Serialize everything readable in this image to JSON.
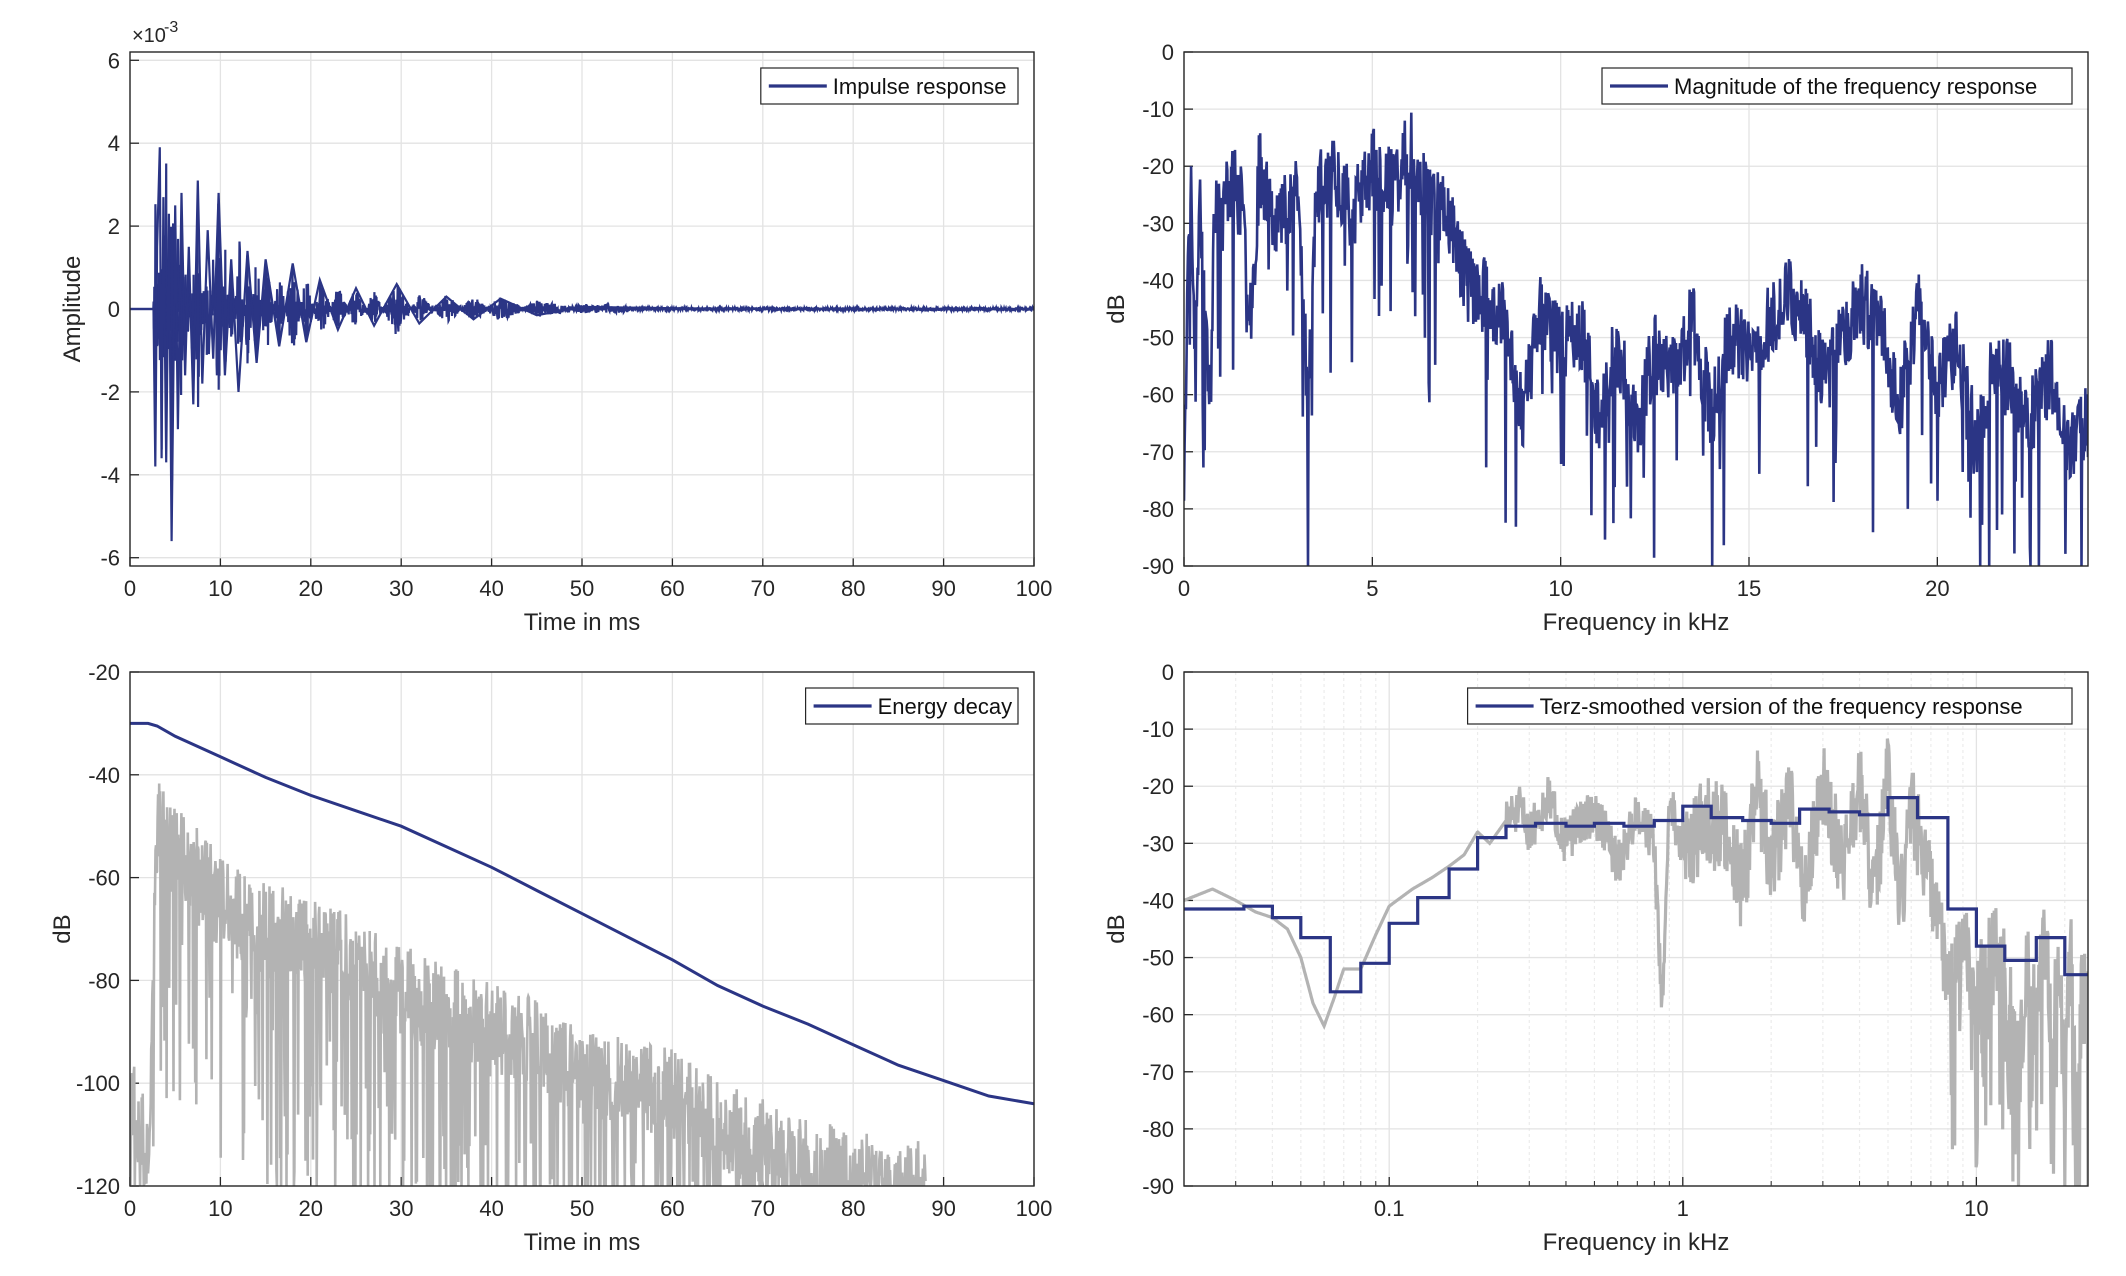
{
  "colors": {
    "series": "#2b3585",
    "gray": "#b3b3b3",
    "grid": "#e3e3e3",
    "axis": "#262626"
  },
  "chart_data": [
    {
      "id": "impulse",
      "type": "line",
      "title": "",
      "xlabel": "Time in ms",
      "ylabel": "Amplitude",
      "exponent_label": "×10",
      "exponent_power": "-3",
      "xlim": [
        0,
        100
      ],
      "ylim": [
        -6.2,
        6.2
      ],
      "xticks": [
        0,
        10,
        20,
        30,
        40,
        50,
        60,
        70,
        80,
        90,
        100
      ],
      "yticks": [
        -6,
        -4,
        -2,
        0,
        2,
        4,
        6
      ],
      "grid": true,
      "legend_position": "top-right",
      "series": [
        {
          "name": "Impulse response",
          "x": [
            0,
            2.6,
            2.8,
            3.0,
            3.3,
            3.5,
            3.7,
            4.0,
            4.3,
            4.6,
            5.0,
            5.3,
            5.7,
            6.1,
            6.5,
            7.0,
            7.5,
            8.0,
            8.6,
            9.2,
            9.8,
            10.5,
            11.2,
            12.0,
            13.0,
            14.0,
            15.0,
            16.5,
            18.0,
            19.5,
            21,
            23,
            25,
            27,
            29.5,
            32,
            35,
            38,
            41,
            45,
            50,
            60,
            70,
            100
          ],
          "y": [
            0,
            0,
            -3.8,
            1.5,
            3.9,
            -3.6,
            2.7,
            -3.7,
            2.3,
            -5.6,
            2.5,
            -2.9,
            2.8,
            -1.6,
            1.5,
            -2.3,
            3.1,
            -1.8,
            1.9,
            -1.2,
            2.8,
            -1.6,
            1.2,
            -2.0,
            1.4,
            -1.3,
            1.2,
            -0.9,
            1.1,
            -0.8,
            0.7,
            -0.5,
            0.5,
            -0.4,
            0.6,
            -0.35,
            0.3,
            -0.25,
            0.25,
            -0.15,
            0.05,
            0.02,
            0,
            0
          ]
        }
      ]
    },
    {
      "id": "magnitude",
      "type": "line",
      "title": "",
      "xlabel": "Frequency in kHz",
      "ylabel": "dB",
      "xlim": [
        0,
        24
      ],
      "ylim": [
        -90,
        0
      ],
      "xticks": [
        0,
        5,
        10,
        15,
        20
      ],
      "yticks": [
        0,
        -10,
        -20,
        -30,
        -40,
        -50,
        -60,
        -70,
        -80,
        -90
      ],
      "grid": true,
      "legend_position": "top-right",
      "series": [
        {
          "name": "Magnitude of the frequency response",
          "x": [
            0,
            0.05,
            0.1,
            0.2,
            0.3,
            0.4,
            0.5,
            0.7,
            0.8,
            1.0,
            1.2,
            1.5,
            1.8,
            2.0,
            2.5,
            3.0,
            3.3,
            3.5,
            4.0,
            4.5,
            5.0,
            5.5,
            6.0,
            6.5,
            7.0,
            7.5,
            8.0,
            8.5,
            9.0,
            9.5,
            10.0,
            10.5,
            11.0,
            11.5,
            12.0,
            12.5,
            13.0,
            13.5,
            14.0,
            14.5,
            15.0,
            15.5,
            16.0,
            16.5,
            17.0,
            17.5,
            18.0,
            18.5,
            19.0,
            19.5,
            20.0,
            20.5,
            21.0,
            21.5,
            22.0,
            22.5,
            23.0,
            23.5,
            24.0
          ],
          "y": [
            -75,
            -60,
            -30,
            -25,
            -58,
            -27,
            -32,
            -64,
            -24,
            -30,
            -22,
            -26,
            -45,
            -20,
            -30,
            -22,
            -62,
            -25,
            -21,
            -28,
            -20,
            -24,
            -17,
            -25,
            -28,
            -40,
            -43,
            -47,
            -63,
            -44,
            -52,
            -48,
            -63,
            -52,
            -66,
            -52,
            -57,
            -46,
            -64,
            -49,
            -54,
            -48,
            -42,
            -46,
            -58,
            -49,
            -44,
            -48,
            -62,
            -45,
            -58,
            -52,
            -68,
            -55,
            -58,
            -64,
            -56,
            -69,
            -65
          ]
        }
      ]
    },
    {
      "id": "energy",
      "type": "line",
      "title": "",
      "xlabel": "Time in ms",
      "ylabel": "dB",
      "xlim": [
        0,
        100
      ],
      "ylim": [
        -120,
        -20
      ],
      "xticks": [
        0,
        10,
        20,
        30,
        40,
        50,
        60,
        70,
        80,
        90,
        100
      ],
      "yticks": [
        -20,
        -40,
        -60,
        -80,
        -100,
        -120
      ],
      "grid": true,
      "legend_position": "top-right",
      "series": [
        {
          "name": "Energy decay",
          "x": [
            0,
            2,
            3,
            5,
            10,
            15,
            20,
            25,
            30,
            35,
            40,
            45,
            50,
            55,
            60,
            65,
            70,
            75,
            80,
            85,
            90,
            95,
            100
          ],
          "y": [
            -30,
            -30,
            -30.5,
            -32.5,
            -36.5,
            -40.5,
            -44,
            -47,
            -50,
            -54,
            -58,
            -62.5,
            -67,
            -71.5,
            -76,
            -81,
            -85,
            -88.5,
            -92.5,
            -96.5,
            -99.5,
            -102.5,
            -104
          ]
        },
        {
          "name": "",
          "x": [
            0,
            2,
            3,
            5,
            8,
            10,
            15,
            20,
            25,
            30,
            35,
            40,
            45,
            50,
            55,
            60,
            65,
            70,
            75,
            80,
            85,
            88
          ],
          "y": [
            -100,
            -115,
            -50,
            -55,
            -60,
            -65,
            -70,
            -72,
            -77,
            -82,
            -86,
            -88,
            -93,
            -97,
            -100,
            -102,
            -108,
            -112,
            -116,
            -118,
            -120,
            -120
          ]
        }
      ]
    },
    {
      "id": "terz",
      "type": "line",
      "title": "",
      "xlabel": "Frequency in kHz",
      "ylabel": "dB",
      "xscale": "log",
      "xlim": [
        0.02,
        24
      ],
      "ylim": [
        -90,
        0
      ],
      "xticks": [
        0.1,
        1,
        10
      ],
      "xtick_labels": [
        "0.1",
        "1",
        "10"
      ],
      "yticks": [
        0,
        -10,
        -20,
        -30,
        -40,
        -50,
        -60,
        -70,
        -80,
        -90
      ],
      "grid": true,
      "legend_position": "top-right",
      "series": [
        {
          "name": "Terz-smoothed version of the frequency response",
          "steps": [
            [
              0.02,
              0.032,
              -41.5
            ],
            [
              0.032,
              0.04,
              -41
            ],
            [
              0.04,
              0.05,
              -43
            ],
            [
              0.05,
              0.063,
              -46.5
            ],
            [
              0.063,
              0.08,
              -56
            ],
            [
              0.08,
              0.1,
              -51
            ],
            [
              0.1,
              0.125,
              -44
            ],
            [
              0.125,
              0.16,
              -39.5
            ],
            [
              0.16,
              0.2,
              -34.5
            ],
            [
              0.2,
              0.25,
              -29
            ],
            [
              0.25,
              0.315,
              -27
            ],
            [
              0.315,
              0.4,
              -26.5
            ],
            [
              0.4,
              0.5,
              -27
            ],
            [
              0.5,
              0.63,
              -26.5
            ],
            [
              0.63,
              0.8,
              -27
            ],
            [
              0.8,
              1.0,
              -26
            ],
            [
              1.0,
              1.25,
              -23.5
            ],
            [
              1.25,
              1.6,
              -25.5
            ],
            [
              1.6,
              2.0,
              -26
            ],
            [
              2.0,
              2.5,
              -26.5
            ],
            [
              2.5,
              3.15,
              -24
            ],
            [
              3.15,
              4.0,
              -24.5
            ],
            [
              4.0,
              5.0,
              -25
            ],
            [
              5.0,
              6.3,
              -22
            ],
            [
              6.3,
              8.0,
              -25.5
            ],
            [
              8.0,
              10.0,
              -41.5
            ],
            [
              10.0,
              12.5,
              -48
            ],
            [
              12.5,
              16.0,
              -50.5
            ],
            [
              16.0,
              20.0,
              -46.5
            ],
            [
              20.0,
              24.0,
              -53
            ]
          ]
        },
        {
          "name": "",
          "x": [
            0.02,
            0.025,
            0.03,
            0.035,
            0.04,
            0.045,
            0.05,
            0.055,
            0.06,
            0.065,
            0.07,
            0.08,
            0.09,
            0.1,
            0.12,
            0.14,
            0.16,
            0.18,
            0.2,
            0.22,
            0.25,
            0.28,
            0.3,
            0.35,
            0.4,
            0.45,
            0.5,
            0.55,
            0.6,
            0.7,
            0.8,
            0.85,
            0.9,
            1.0,
            1.2,
            1.4,
            1.6,
            1.8,
            2.0,
            2.3,
            2.6,
            3.0,
            3.5,
            4.0,
            4.5,
            5.0,
            5.5,
            6.0,
            7.0,
            8.0,
            9.0,
            10,
            11,
            12,
            13,
            14,
            15,
            16,
            17,
            18,
            19,
            20,
            21,
            22,
            23,
            24
          ],
          "y": [
            -40,
            -38,
            -40,
            -42,
            -43,
            -45,
            -50,
            -58,
            -62,
            -57,
            -52,
            -52,
            -46,
            -41,
            -38,
            -36,
            -34,
            -32,
            -28,
            -30,
            -26,
            -24,
            -28,
            -22,
            -30,
            -26,
            -25,
            -28,
            -34,
            -24,
            -30,
            -60,
            -22,
            -32,
            -26,
            -28,
            -38,
            -20,
            -34,
            -22,
            -38,
            -20,
            -34,
            -20,
            -40,
            -18,
            -42,
            -24,
            -38,
            -52,
            -46,
            -60,
            -44,
            -50,
            -56,
            -70,
            -48,
            -62,
            -44,
            -60,
            -50,
            -72,
            -48,
            -80,
            -52,
            -62
          ]
        }
      ]
    }
  ]
}
